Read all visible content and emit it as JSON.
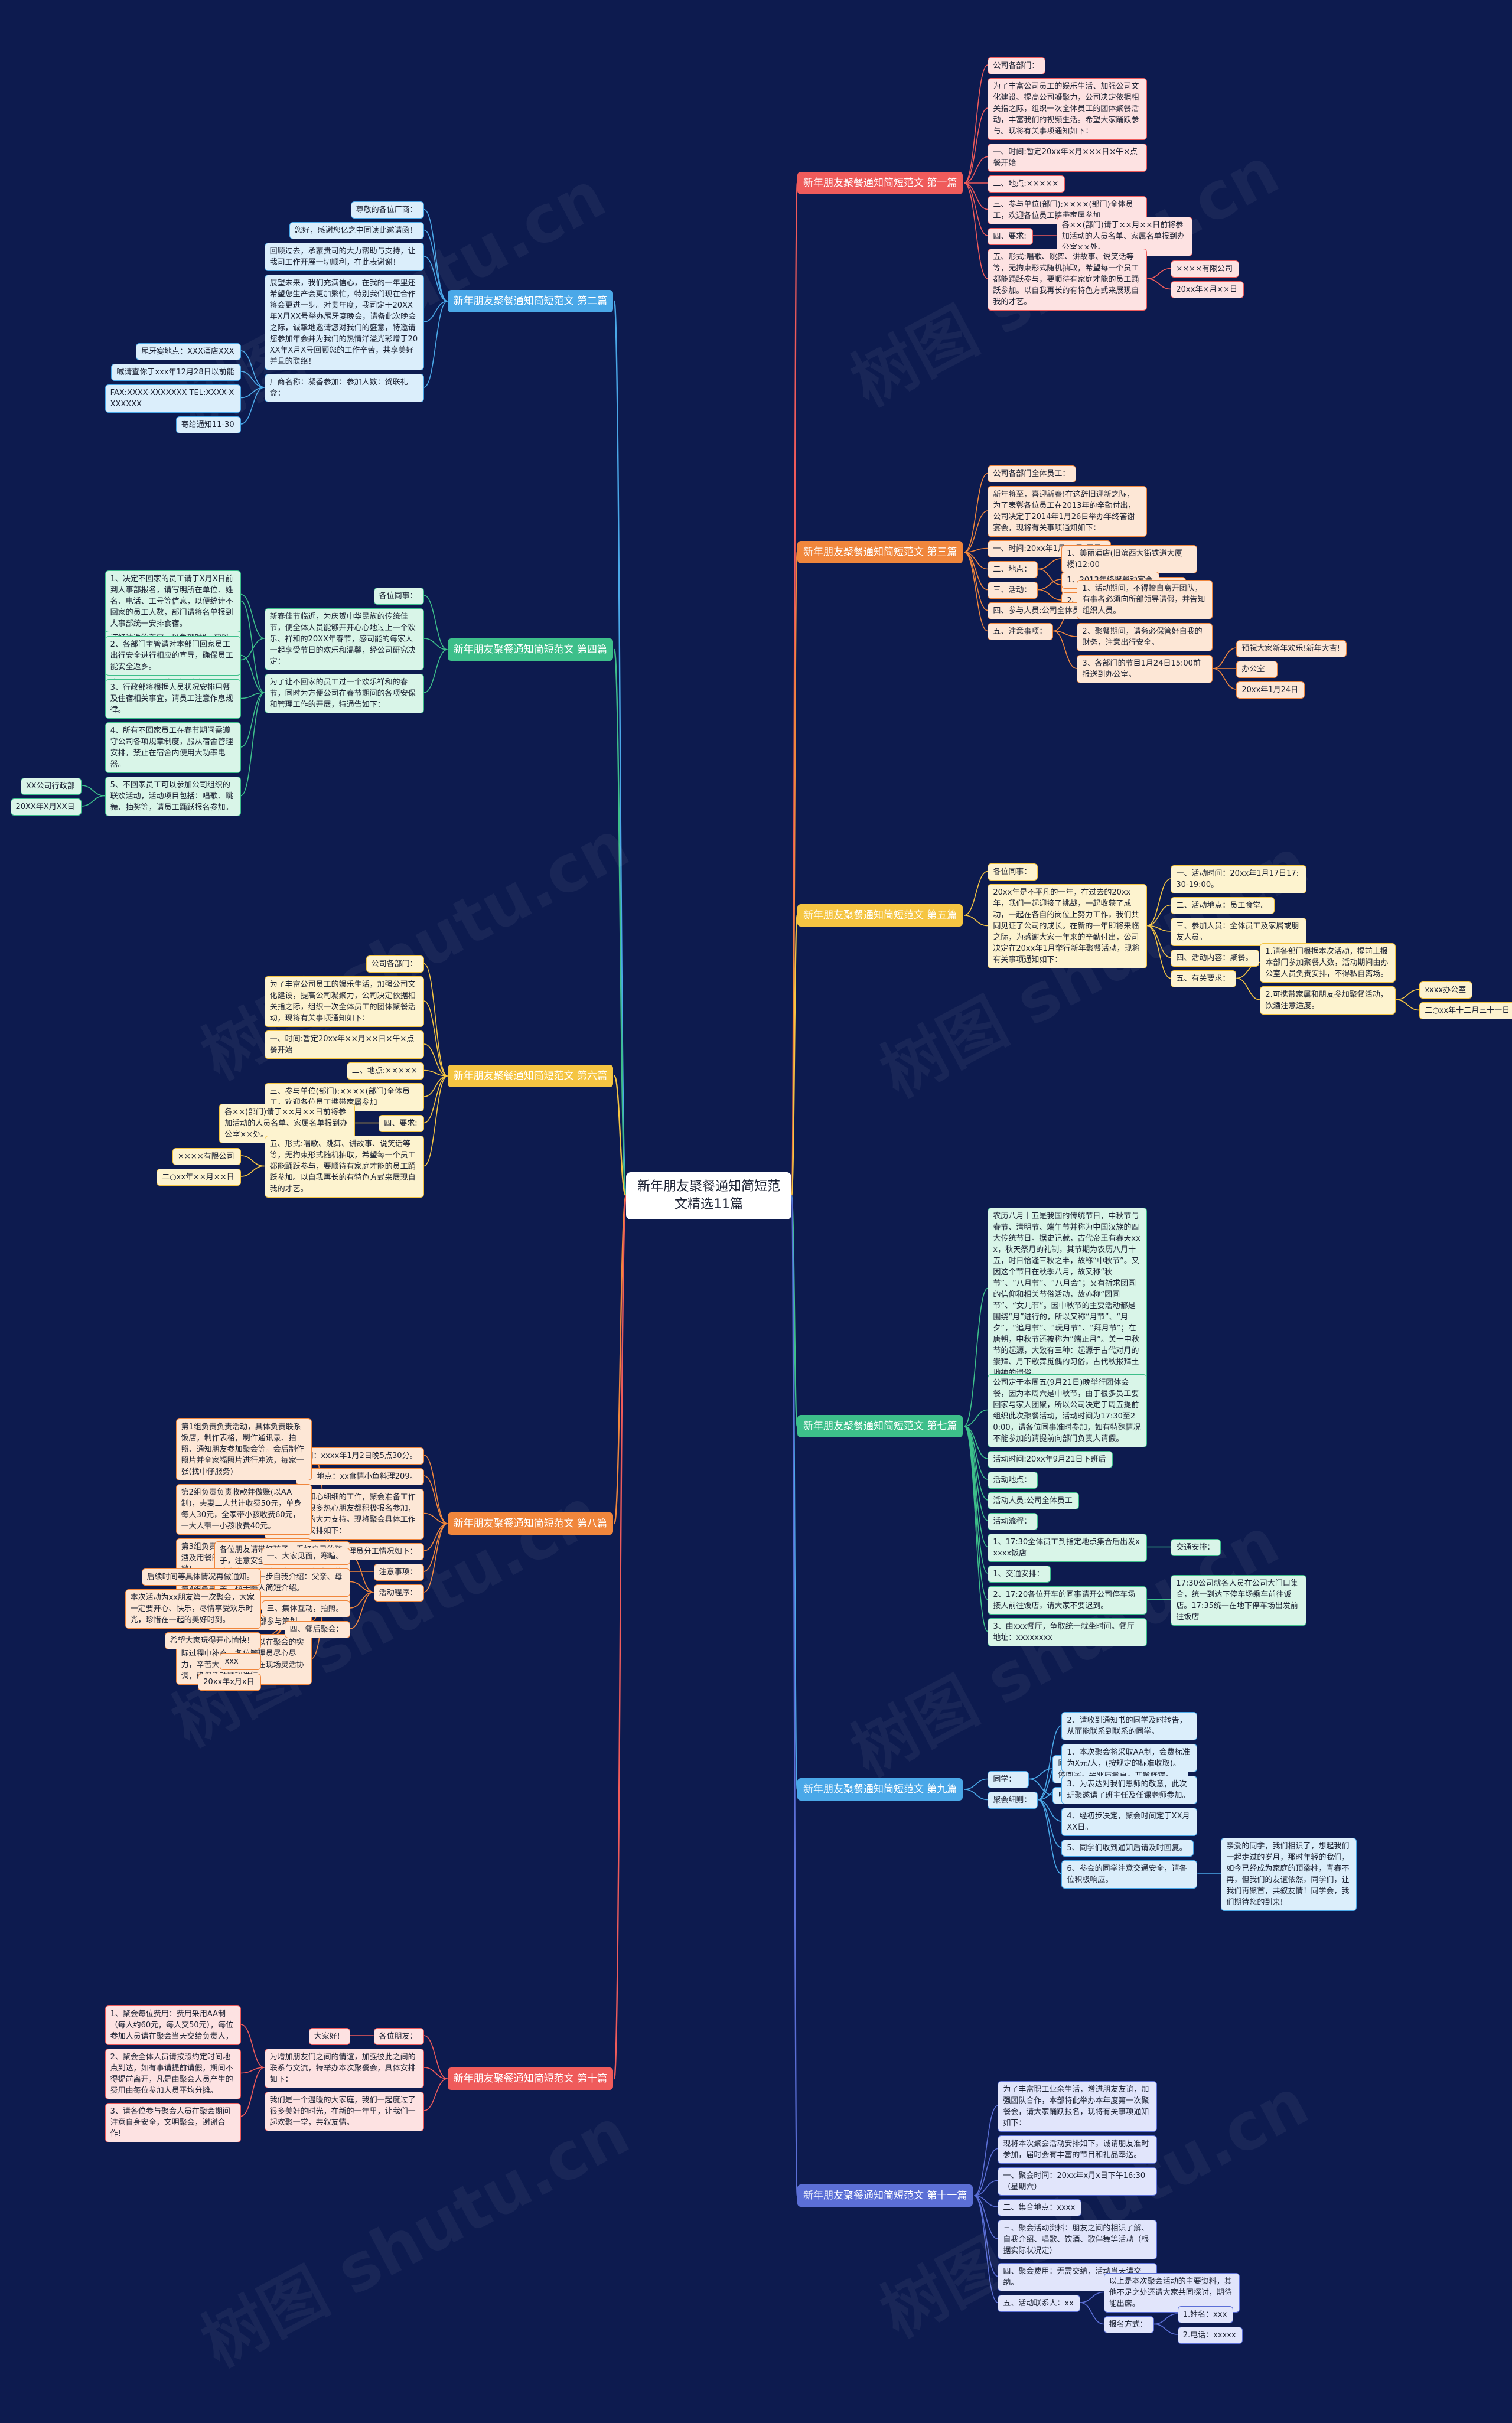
{
  "root": "新年朋友聚餐通知简短范文精选11篇",
  "watermark": "树图 shutu.cn",
  "colors": {
    "bg": "#0d1b4f",
    "red": "#ef5b5b",
    "orange": "#f0863c",
    "yellow": "#f5c542",
    "green": "#3dbf8a",
    "blue": "#4aa8e8",
    "indigo": "#5b6fd6"
  },
  "branches": [
    {
      "label": "新年朋友聚餐通知简短范文 第一篇",
      "color": "red",
      "items": [
        {
          "t": "公司各部门："
        },
        {
          "t": "为了丰富公司员工的娱乐生活、加强公司文化建设、提高公司凝聚力，公司决定依据相关指之际，组织一次全体员工的团体聚餐活动，丰富我们的视频生活。希望大家踊跃参与。现将有关事项通知如下："
        },
        {
          "t": "一、时间:暂定20xx年×月×××日×午×点餐开始"
        },
        {
          "t": "二、地点:×××××"
        },
        {
          "t": "三、参与单位(部门):××××(部门)全体员工，欢迎各位员工携带家属参加"
        },
        {
          "t": "四、要求:",
          "c": [
            {
              "t": "各××(部门)请于××月××日前将参加活动的人员名单、家属名单报到办公室××处。"
            }
          ]
        },
        {
          "t": "五、形式:唱歌、跳舞、讲故事、说笑话等等，无拘束形式随机抽取，希望每一个员工都能踊跃参与，要顺待有家庭才能的员工踊跃参加。以自我再长的有特色方式来展现自我的才艺。",
          "c": [
            {
              "t": "××××有限公司"
            },
            {
              "t": "20xx年×月××日"
            }
          ]
        }
      ]
    },
    {
      "label": "新年朋友聚餐通知简短范文 第二篇",
      "color": "blue",
      "items": [
        {
          "t": "尊敬的各位厂商："
        },
        {
          "t": "您好，感谢您亿之中同读此邀请函！"
        },
        {
          "t": "回顾过去，承蒙贵司的大力帮助与支持，让我司工作开展一切顺利，在此表谢谢！"
        },
        {
          "t": "展望未来，我们充满信心，在我的一年里还希望您生产会更加繁忙，特别我们现在合作将会更进一步。对贵年度，我司定于20XX年X月XX号举办尾牙宴晚会，请备此次晚会之际，诚挚地邀请您对我们的盛意，特邀请您参加年会并为我们的热情洋溢光彩增于20XX年X月X号回顾您的工作辛苦，共享美好并且的联络！"
        },
        {
          "t": "厂商名称：凝香参加：参加人数：贺联礼盒：",
          "c": [
            {
              "t": "尾牙宴地点：XXX酒店XXX"
            },
            {
              "t": "喊请查你于xxx年12月28日以前能"
            },
            {
              "t": "FAX:XXXX-XXXXXXX TEL:XXXX-XXXXXXX"
            },
            {
              "t": "寄给通知11-30"
            }
          ]
        }
      ]
    },
    {
      "label": "新年朋友聚餐通知简短范文 第三篇",
      "color": "orange",
      "items": [
        {
          "t": "公司各部门全体员工："
        },
        {
          "t": "新年将至，喜迎新春!在这辞旧迎新之际，为了表彰各位员工在2013年的辛勤付出，公司决定于2014年1月26日举办年终答谢宴会，现将有关事项通知如下："
        },
        {
          "t": "一、时间:20xx年1月26日(周日)"
        },
        {
          "t": "二、地点：",
          "c": [
            {
              "t": "1、美丽酒店(旧滨西大街铁道大厦楼)12:00"
            },
            {
              "t": "2、欢乐迪量乐厅(南湖中心)2:00"
            }
          ]
        },
        {
          "t": "三、活动：",
          "c": [
            {
              "t": "1、2013年终聚餐动宴会"
            },
            {
              "t": "2、KTV联欢会及抽奖活动"
            }
          ]
        },
        {
          "t": "四、参与人员:公司全体员工"
        },
        {
          "t": "五、注意事项：",
          "c": [
            {
              "t": "1、活动期间，不得擅自离开团队，有事者必须向所部领导请假，并告知组织人员。"
            },
            {
              "t": "2、聚餐期间，请务必保管好自我的财务，注意出行安全。"
            },
            {
              "t": "3、各部门的节目1月24日15:00前报送到办公室。",
              "c": [
                {
                  "t": "预祝大家新年欢乐!新年大吉!"
                },
                {
                  "t": "办公室"
                },
                {
                  "t": "20xx年1月24日"
                }
              ]
            }
          ]
        }
      ]
    },
    {
      "label": "新年朋友聚餐通知简短范文 第四篇",
      "color": "green",
      "items": [
        {
          "t": "各位同事："
        },
        {
          "t": "新春佳节临近，为庆贺中华民族的传统佳节，使全体人员能够开开心心地过上一个欢乐、祥和的20XX年春节，感司能的每家人一起享受节日的欢乐和温馨，经公司研究决定：",
          "c": [
            {
              "t": "公司定于X月X日起开始放年假，年假共计XX天，截止时间为X月X日，X日正式上班。"
            },
            {
              "t": "回家的员工建议乘坐各种途径提前预订好往返的车票，以免到时“一票难求”，计划好返程时间，同时，公司要求所有的员工务必在X月X日前返深圳，确保第二天能回工厂正常上班。届时公司一律不接受请假，返期未到者按旷工处理。"
            }
          ]
        },
        {
          "t": "为了让不回家的员工过一个欢乐祥和的春节，同时为方便公司在春节期间的各项安保和管理工作的开展，特通告如下：",
          "c": [
            {
              "t": "1、决定不回家的员工请于X月X日前到人事部报名，请写明所在单位、姓名、电话、工号等信息，以便统计不回家的员工人数，部门请将名单报到人事部统一安排食宿。"
            },
            {
              "t": "2、各部门主管请对本部门回家员工出行安全进行相应的宣导，确保员工能安全返乡。"
            },
            {
              "t": "3、行政部将根据人员状况安排用餐及住宿相关事宜，请员工注意作息规律。"
            },
            {
              "t": "4、所有不回家员工在春节期间需遵守公司各项规章制度，服从宿舍管理安排，禁止在宿舍内使用大功率电器。"
            },
            {
              "t": "5、不回家员工可以参加公司组织的联欢活动，活动项目包括：唱歌、跳舞、抽奖等，请员工踊跃报名参加。",
              "c": [
                {
                  "t": "XX公司行政部"
                },
                {
                  "t": "20XX年X月XX日"
                }
              ]
            }
          ]
        }
      ]
    },
    {
      "label": "新年朋友聚餐通知简短范文 第五篇",
      "color": "yellow",
      "items": [
        {
          "t": "各位同事："
        },
        {
          "t": "20xx年是不平凡的一年，在过去的20xx年，我们一起迎接了挑战，一起收获了成功，一起在各自的岗位上努力工作，我们共同见证了公司的成长。在新的一年即将来临之际，为感谢大家一年来的辛勤付出，公司决定在20xx年1月举行新年聚餐活动，现将有关事项通知如下：",
          "c": [
            {
              "t": "一、活动时间：20xx年1月17日17:30-19:00。"
            },
            {
              "t": "二、活动地点：员工食堂。"
            },
            {
              "t": "三、参加人员：全体员工及家属或朋友人员。"
            },
            {
              "t": "四、活动内容：聚餐。"
            },
            {
              "t": "五、有关要求：",
              "c": [
                {
                  "t": "1.请各部门根据本次活动，提前上报本部门参加聚餐人数，活动期间由办公室人员负责安排，不得私自离场。"
                },
                {
                  "t": "2.可携带家属和朋友参加聚餐活动，饮酒注意适度。",
                  "c": [
                    {
                      "t": "xxxx办公室"
                    },
                    {
                      "t": "二○xx年十二月三十一日"
                    }
                  ]
                }
              ]
            }
          ]
        }
      ]
    },
    {
      "label": "新年朋友聚餐通知简短范文 第六篇",
      "color": "yellow",
      "items": [
        {
          "t": "公司各部门："
        },
        {
          "t": "为了丰富公司员工的娱乐生活，加强公司文化建设，提高公司凝聚力，公司决定依据相关指之际，组织一次全体员工的团体聚餐活动，现将有关事项通知如下："
        },
        {
          "t": "一、时间:暂定20xx年××月××日×午×点餐开始"
        },
        {
          "t": "二、地点:×××××"
        },
        {
          "t": "三、参与单位(部门):××××(部门)全体员工，欢迎各位员工携带家属参加"
        },
        {
          "t": "四、要求:",
          "c": [
            {
              "t": "各××(部门)请于××月××日前将参加活动的人员名单、家属名单报到办公室××处。"
            }
          ]
        },
        {
          "t": "五、形式:唱歌、跳舞、讲故事、说笑话等等，无拘束形式随机抽取，希望每一个员工都能踊跃参与，要顺待有家庭才能的员工踊跃参加。以自我再长的有特色方式来展现自我的才艺。",
          "c": [
            {
              "t": "××××有限公司"
            },
            {
              "t": "二○xx年××月××日"
            }
          ]
        }
      ]
    },
    {
      "label": "新年朋友聚餐通知简短范文 第七篇",
      "color": "green",
      "items": [
        {
          "t": "农历八月十五是我国的传统节日，中秋节与春节、清明节、端午节并称为中国汉族的四大传统节日。据史记载，古代帝王有春天xxx，秋天祭月的礼制，其节期为农历八月十五，时日恰逢三秋之半，故称“中秋节”。又因这个节日在秋季八月，故又称“秋节”、“八月节”、“八月会”；又有祈求团圆的信仰和相关节俗活动，故亦称“团圆节”、“女儿节”。因中秋节的主要活动都是围绕“月”进行的，所以又称“月节”、“月夕”，“追月节”、“玩月节”、“拜月节”；在唐朝，中秋节还被称为“端正月”。关于中秋节的起源，大致有三种：起源于古代对月的崇拜、月下歌舞觅偶的习俗，古代秋报拜土地神的遗俗。"
        },
        {
          "t": "公司定于本周五(9月21日)晚举行团体会餐，因为本周六是中秋节，由于很多员工要回家与家人团聚，所以公司决定于周五提前组织此次聚餐活动，活动时间为17:30至20:00，请各位同事准时参加，如有特殊情况不能参加的请提前向部门负责人请假。"
        },
        {
          "t": "活动时间:20xx年9月21日下班后"
        },
        {
          "t": "活动地点："
        },
        {
          "t": "活动人员:公司全体员工"
        },
        {
          "t": "活动流程："
        },
        {
          "t": "1、17:30全体员工到指定地点集合后出发xxxxx饭店",
          "c": [
            {
              "t": "交通安排："
            }
          ]
        },
        {
          "t": "1、交通安排："
        },
        {
          "t": "2、17:20各位开车的同事请开公司停车场接人前往饭店，请大家不要迟到。",
          "c": [
            {
              "t": "17:30公司就各人员在公司大门口集合，统一到达下停车场乘车前往饭店。17:35统一在地下停车场出发前往饭店"
            }
          ]
        },
        {
          "t": "3、由xxx餐厅，争取统一就坐时间。餐厅地址：xxxxxxxx"
        }
      ]
    },
    {
      "label": "新年朋友聚餐通知简短范文 第八篇",
      "color": "orange",
      "items": [
        {
          "t": "一、时间：xxxx年1月2日晚5点30分。"
        },
        {
          "t": "二、地点：xx食情小鱼料理209。"
        },
        {
          "t": "经过管理员和心细细的工作，聚会准备工作顺利开展，很多热心朋友都积极报名参加，感谢朋友们的大力支持。现将聚会具体工作及注意事项安排如下："
        },
        {
          "t": "管理员分工情况如下：",
          "c": [
            {
              "t": "第1组负责负责活动，具体负责联系饭店，制作表格，制作通讯录、拍照、通知朋友参加聚会等。会后制作照片并全家福照片进行冲洗，每家一张(找中仔服务)"
            },
            {
              "t": "第2组负责负责收款并做账(以AA制)，夫妻二人共计收费50元，单身每人30元，全家带小孩收费60元，一大人带一小孩收费40元。"
            },
            {
              "t": "第3组负责负责购买饮料、啤酒、白酒及用餐的配套工作，帮忙找中仔报销!"
            },
            {
              "t": "第4组负责负责家庭成员的接待，介绍引见新朋友认识，维持秩序。"
            },
            {
              "t": "管理组成员全部参与策划。"
            },
            {
              "t": "以上分工如果有不足可以在聚会的实际过程中补充，各位管理员尽心尽力，辛苦大家了，可以在现场灵活协调，确保活动顺利进行。"
            }
          ]
        },
        {
          "t": "注意事项：",
          "c": [
            {
              "t": "各位朋友请带好孩子，看好自己的孩子，注意安全，由于是AA制聚会，请大家尽量准时到达，照顾好自己的家人，不要迟到早退，感谢大家的理解与支持!"
            }
          ]
        },
        {
          "t": "活动程序：",
          "c": [
            {
              "t": "一、大家见面，寒暄。"
            },
            {
              "t": "二、大家进一步自我介绍：父亲、母亲、孩子每人简短介绍。"
            },
            {
              "t": "三、集体互动，拍照。"
            },
            {
              "t": "四、餐后聚会：",
              "c": [
                {
                  "t": "后续时间等具体情况再做通知。"
                },
                {
                  "t": "本次活动为xx朋友第一次聚会，大家一定要开心、快乐，尽情享受欢乐时光，珍惜在一起的美好时刻。"
                },
                {
                  "t": "希望大家玩得开心愉快！"
                },
                {
                  "t": "xxx"
                },
                {
                  "t": "20xx年x月x日"
                }
              ]
            }
          ]
        }
      ]
    },
    {
      "label": "新年朋友聚餐通知简短范文 第九篇",
      "color": "blue",
      "items": [
        {
          "t": "同学：",
          "c": [
            {
              "t": "同窗分离多年，适今XX届XX班的全体同学，毕业后聚首，共聚辉煌。"
            },
            {
              "t": "电话联络：电话：____"
            }
          ]
        },
        {
          "t": "聚会细则：",
          "c": [
            {
              "t": "2、请收到通知书的同学及时转告，从而能联系到联系的同学。"
            },
            {
              "t": "1、本次聚会将采取AA制，会费标准为X元/人，(按规定的标准收取)。"
            },
            {
              "t": "3、为表达对我们恩师的敬意，此次班聚邀请了班主任及任课老师参加。"
            },
            {
              "t": "4、经初步决定，聚会时间定于XX月XX日。"
            },
            {
              "t": "5、同学们收到通知后请及时回复。"
            },
            {
              "t": "6、参会的同学注意交通安全，请各位积极响应。",
              "c": [
                {
                  "t": "亲爱的同学，我们相识了，想起我们一起走过的岁月，那时年轻的我们，如今已经成为家庭的顶梁柱，青春不再，但我们的友谊依然，同学们，让我们再聚首，共叙友情！同学会，我们期待您的到来!"
                }
              ]
            }
          ]
        }
      ]
    },
    {
      "label": "新年朋友聚餐通知简短范文 第十篇",
      "color": "red",
      "items": [
        {
          "t": "各位朋友：",
          "c": [
            {
              "t": "大家好!"
            }
          ]
        },
        {
          "t": "为增加朋友们之间的情谊，加强彼此之间的联系与交流，特举办本次聚餐会，具体安排如下：",
          "c": [
            {
              "t": "1、聚会每位费用：费用采用AA制（每人约60元，每人交50元），每位参加人员请在聚会当天交给负责人，"
            },
            {
              "t": "2、聚会全体人员请按照约定时间地点到达，如有事请提前请假，期间不得提前离开，凡是由聚会人员产生的费用由每位参加人员平均分摊。"
            },
            {
              "t": "3、请各位参与聚会人员在聚会期间注意自身安全，文明聚会，谢谢合作!"
            }
          ]
        },
        {
          "t": "我们是一个温暖的大家庭，我们一起度过了很多美好的时光，在新的一年里，让我们一起欢聚一堂，共叙友情。"
        }
      ]
    },
    {
      "label": "新年朋友聚餐通知简短范文 第十一篇",
      "color": "indigo",
      "items": [
        {
          "t": "为了丰富职工业余生活，增进朋友友谊，加强团队合作，本部特此举办本年度第一次聚餐会，请大家踊跃报名，现将有关事项通知如下："
        },
        {
          "t": "现将本次聚会活动安排如下，诚请朋友准时参加，届时会有丰富的节目和礼品奉送。"
        },
        {
          "t": "一、聚会时间：20xx年x月x日下午16:30（星期六）"
        },
        {
          "t": "二、集合地点：xxxx"
        },
        {
          "t": "三、聚会活动资料：朋友之间的相识了解、自我介绍、唱歌、饮酒、歌伴舞等活动（根据实际状况定）"
        },
        {
          "t": "四、聚会费用：无需交纳，活动当天请交纳。"
        },
        {
          "t": "五、活动联系人：xx",
          "c": [
            {
              "t": "以上是本次聚会活动的主要资料，其他不足之处还请大家共同探讨，期待能出席。"
            },
            {
              "t": "报名方式：",
              "c": [
                {
                  "t": "1.姓名：xxx"
                },
                {
                  "t": "2.电话：xxxxx"
                }
              ]
            }
          ]
        }
      ]
    }
  ]
}
